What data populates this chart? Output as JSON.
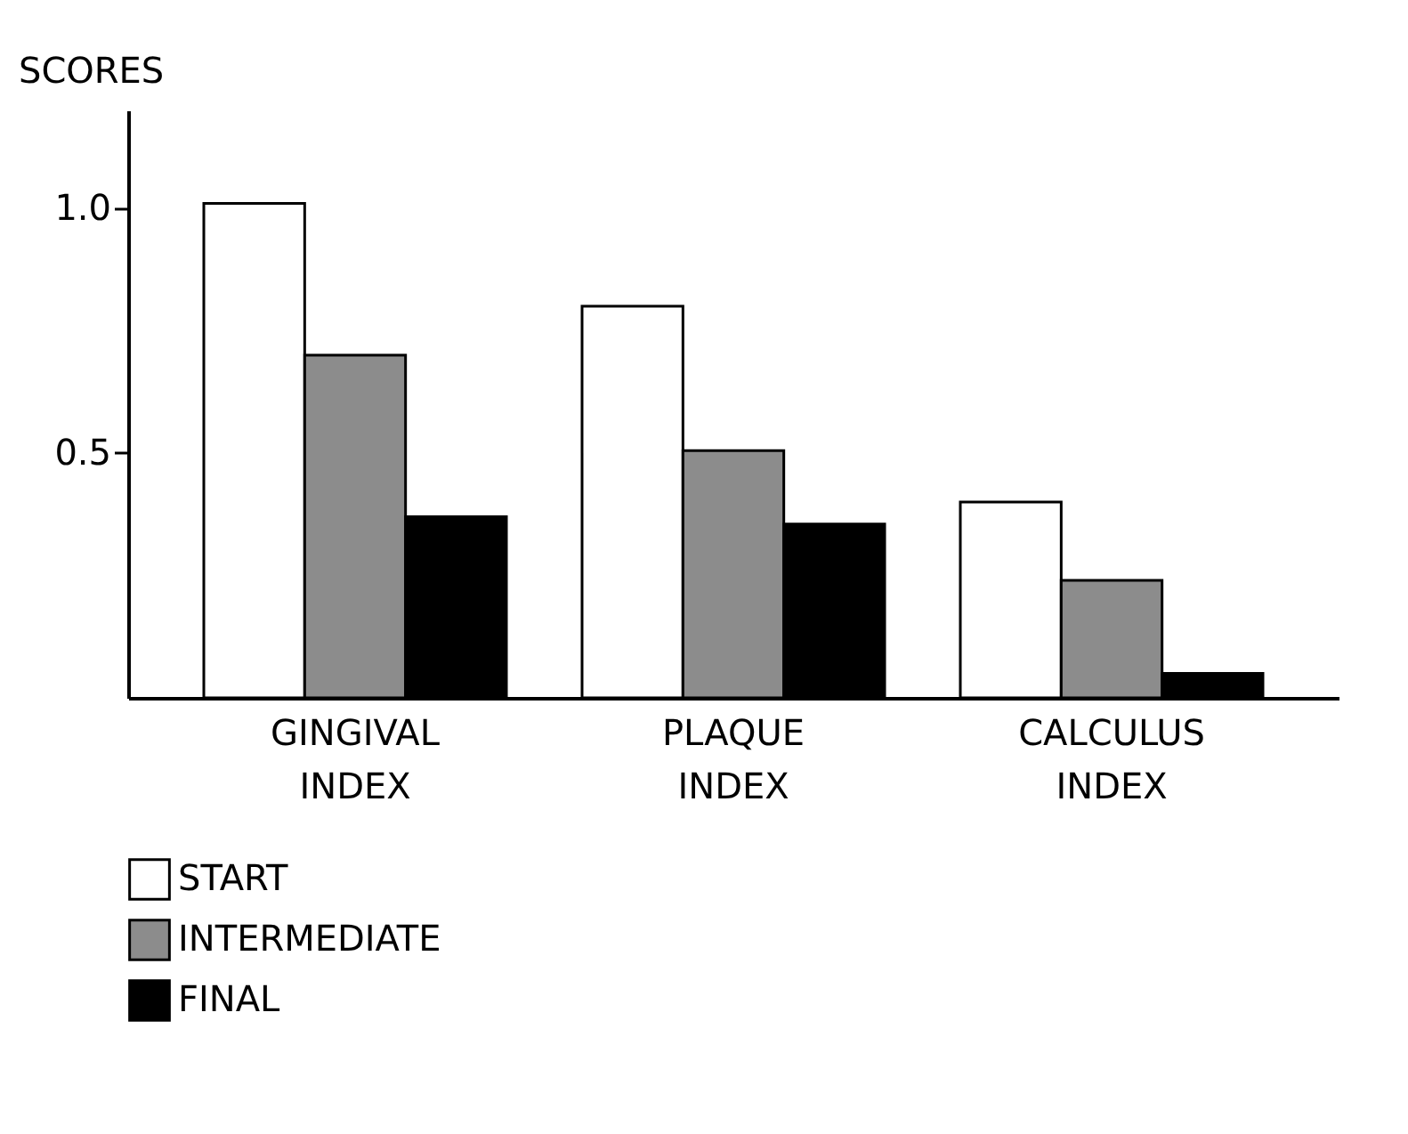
{
  "chart_data": {
    "type": "bar",
    "ylabel": "SCORES",
    "categories": [
      "GINGIVAL INDEX",
      "PLAQUE INDEX",
      "CALCULUS INDEX"
    ],
    "series": [
      {
        "name": "START",
        "color": "#ffffff",
        "values": [
          1.01,
          0.8,
          0.4
        ]
      },
      {
        "name": "INTERMEDIATE",
        "color": "#8c8c8c",
        "values": [
          0.7,
          0.505,
          0.24
        ]
      },
      {
        "name": "FINAL",
        "color": "#000000",
        "values": [
          0.37,
          0.355,
          0.05
        ]
      }
    ],
    "ylim": [
      0,
      1.2
    ],
    "yticks": [
      {
        "value": 0.5,
        "label": "0.5"
      },
      {
        "value": 1.0,
        "label": "1.0"
      }
    ],
    "grid": false,
    "legend": "bottom"
  }
}
